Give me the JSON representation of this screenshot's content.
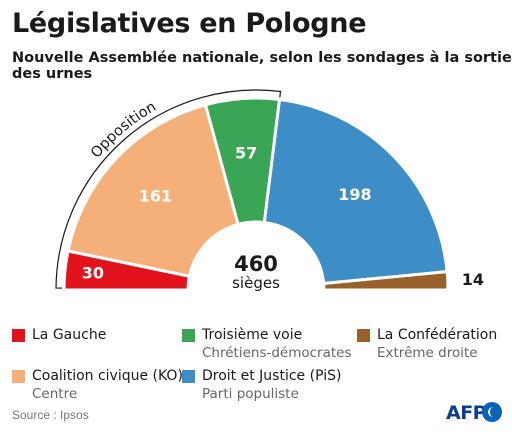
{
  "header": {
    "title": "Législatives en Pologne",
    "subtitle": "Nouvelle Assemblée nationale, selon les sondages à la sortie des urnes"
  },
  "chart_data": {
    "type": "parliament-semicircle",
    "total": 460,
    "center_value": "460",
    "center_label": "sièges",
    "bracket_label": "Opposition",
    "bracket_covers": [
      "La Gauche",
      "Coalition civique (KO)",
      "Troisième voie"
    ],
    "series": [
      {
        "name": "La Gauche",
        "value": 30,
        "label": "30",
        "color": "#e3131b"
      },
      {
        "name": "Coalition civique (KO)",
        "value": 161,
        "label": "161",
        "color": "#f5b07a"
      },
      {
        "name": "Troisième voie",
        "value": 57,
        "label": "57",
        "color": "#3aa655"
      },
      {
        "name": "Droit et Justice (PiS)",
        "value": 198,
        "label": "198",
        "color": "#3d8ec6"
      },
      {
        "name": "La Confédération",
        "value": 14,
        "label": "14",
        "color": "#98612b"
      }
    ]
  },
  "legend": [
    {
      "label": "La Gauche",
      "sub": "",
      "color": "#e3131b"
    },
    {
      "label": "Troisième voie",
      "sub": "Chrétiens-démocrates",
      "color": "#3aa655"
    },
    {
      "label": "La Confédération",
      "sub": "Extrême droite",
      "color": "#98612b"
    },
    {
      "label": "Coalition civique (KO)",
      "sub": "Centre",
      "color": "#f5b07a"
    },
    {
      "label": "Droit et Justice (PiS)",
      "sub": "Parti populiste",
      "color": "#3d8ec6"
    }
  ],
  "footer": {
    "source": "Source : Ipsos",
    "logo": "AFP"
  }
}
